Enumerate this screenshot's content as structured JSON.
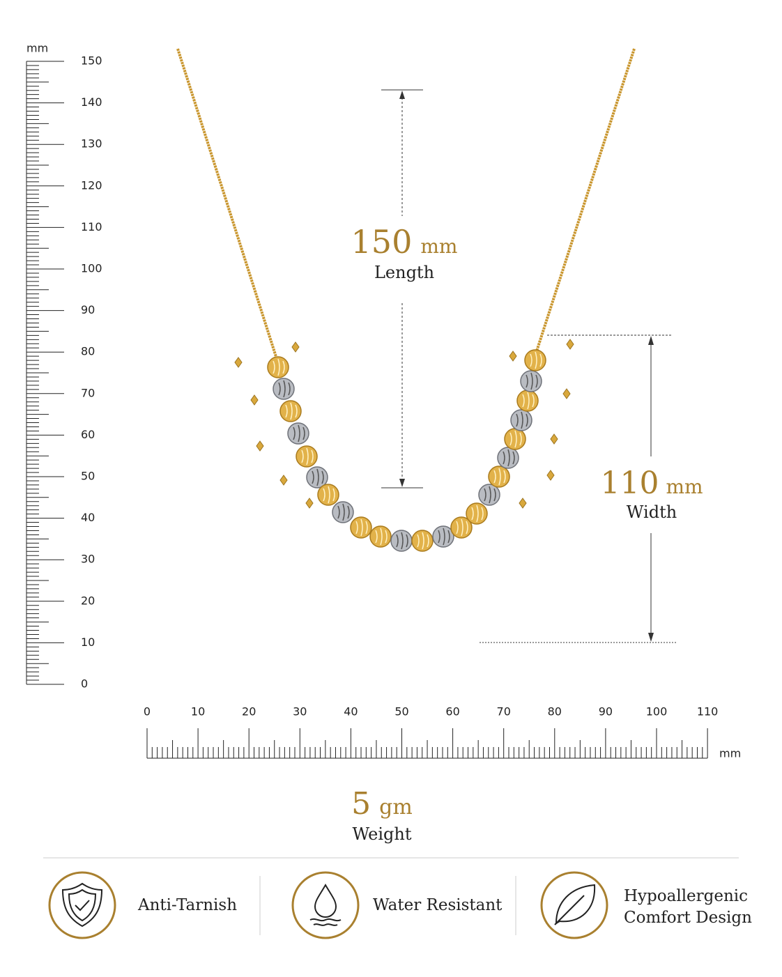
{
  "vertical_ruler": {
    "unit": "mm",
    "labels": [
      150,
      140,
      130,
      120,
      110,
      100,
      90,
      80,
      70,
      60,
      50,
      40,
      30,
      20,
      10,
      0
    ]
  },
  "horizontal_ruler": {
    "unit": "mm",
    "labels": [
      0,
      10,
      20,
      30,
      40,
      50,
      60,
      70,
      80,
      90,
      100,
      110
    ]
  },
  "length": {
    "value": 150,
    "unit": "mm",
    "label": "Length"
  },
  "width": {
    "value": 110,
    "unit": "mm",
    "label": "Width"
  },
  "weight": {
    "value": 5,
    "unit": "gm",
    "label": "Weight"
  },
  "features": [
    {
      "label": "Anti-Tarnish"
    },
    {
      "label": "Water Resistant"
    },
    {
      "label": "Hypoallergenic",
      "label2": "Comfort Design"
    }
  ]
}
